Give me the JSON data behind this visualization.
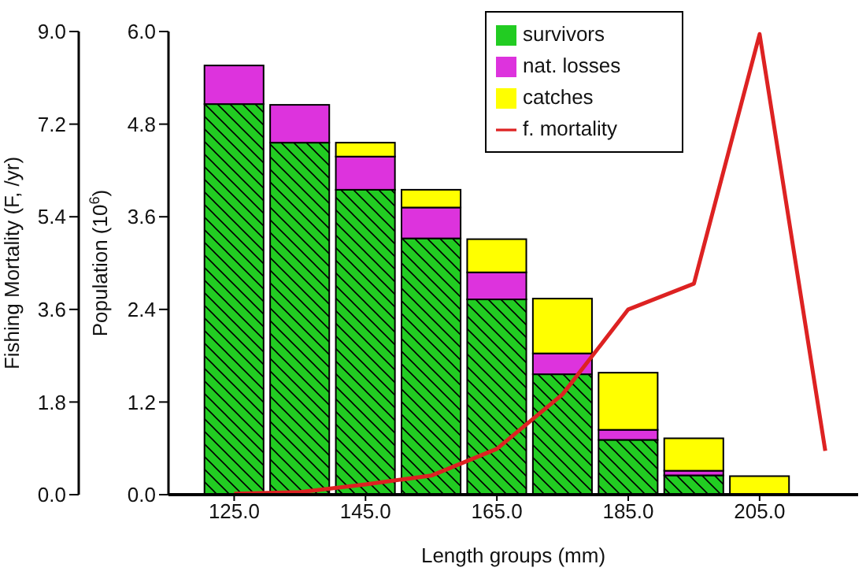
{
  "chart_data": {
    "type": "bar",
    "stacked": true,
    "xlabel": "Length groups (mm)",
    "ylabel": "Population (10$^{6}$)",
    "y2label": "Fishing Mortality (F, /yr)",
    "x": [
      125,
      135,
      145,
      155,
      165,
      175,
      185,
      195,
      205
    ],
    "series": [
      {
        "name": "survivors",
        "color": "#22cc22",
        "values": [
          5.06,
          4.56,
          3.95,
          3.32,
          2.53,
          1.56,
          0.71,
          0.25,
          null
        ]
      },
      {
        "name": "nat. losses",
        "color": "#dd33dd",
        "values": [
          0.5,
          0.49,
          0.43,
          0.4,
          0.35,
          0.27,
          0.13,
          0.06,
          0
        ]
      },
      {
        "name": "catches",
        "color": "#ffff00",
        "values": [
          0,
          0,
          0.18,
          0.23,
          0.43,
          0.71,
          0.74,
          0.42,
          0.24
        ]
      },
      {
        "name": "f. mortality",
        "type": "line",
        "axis": "y2",
        "color": "#dd2222",
        "x": [
          125,
          135,
          145,
          155,
          165,
          175,
          185,
          195,
          205,
          215
        ],
        "values": [
          0.02,
          0.05,
          0.2,
          0.37,
          0.89,
          1.95,
          3.6,
          4.1,
          8.95,
          0.85
        ]
      }
    ],
    "xlim": [
      115,
      220
    ],
    "xticks": [
      {
        "value": 125,
        "label": "125.0"
      },
      {
        "value": 145,
        "label": "145.0"
      },
      {
        "value": 165,
        "label": "165.0"
      },
      {
        "value": 185,
        "label": "185.0"
      },
      {
        "value": 205,
        "label": "205.0"
      }
    ],
    "ylim": [
      0,
      6
    ],
    "yticks": [
      {
        "value": 0,
        "label": "0.0"
      },
      1.2,
      2.4,
      3.6,
      4.8,
      {
        "value": 6,
        "label": "6.0"
      }
    ],
    "y2lim": [
      0,
      9
    ],
    "y2ticks": [
      {
        "value": 0,
        "label": "0.0"
      },
      1.8,
      3.6,
      5.4,
      7.2,
      {
        "value": 9,
        "label": "9.0"
      }
    ],
    "legend": "top right",
    "grid": false,
    "marker": "none",
    "line_style": "solid"
  }
}
